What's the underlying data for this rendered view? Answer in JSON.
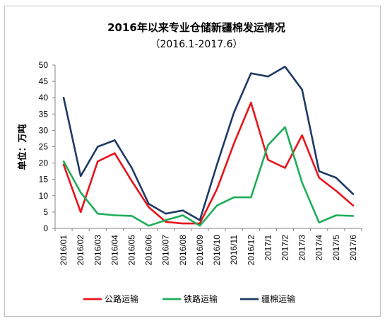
{
  "chart_data": {
    "type": "line",
    "title": "2016年以来专业仓储新疆棉发运情况",
    "subtitle": "（2016.1-2017.6）",
    "ylabel": "单位：万吨",
    "xlabel": "",
    "ylim": [
      0,
      50
    ],
    "yticks": [
      0,
      5,
      10,
      15,
      20,
      25,
      30,
      35,
      40,
      45,
      50
    ],
    "grid": false,
    "legend_position": "bottom",
    "categories": [
      "2016/01",
      "2016/02",
      "2016/03",
      "2016/04",
      "2016/05",
      "2016/06",
      "2016/07",
      "2016/08",
      "2016/09",
      "2016/10",
      "2016/11",
      "2016/12",
      "2017/1",
      "2017/2",
      "2017/3",
      "2017/4",
      "2017/5",
      "2017/6"
    ],
    "series": [
      {
        "name": "公路运输",
        "color": "#e8141b",
        "values": [
          19.5,
          5.0,
          20.5,
          23.0,
          14.5,
          6.5,
          2.0,
          1.5,
          1.5,
          12.0,
          26.0,
          38.5,
          21.0,
          18.5,
          28.5,
          15.5,
          11.5,
          7.0
        ]
      },
      {
        "name": "铁路运输",
        "color": "#1fad5a",
        "values": [
          20.5,
          11.0,
          4.5,
          4.0,
          3.8,
          0.8,
          2.5,
          4.0,
          0.8,
          7.0,
          9.5,
          9.5,
          25.5,
          31.0,
          14.0,
          1.8,
          4.0,
          3.8
        ]
      },
      {
        "name": "疆棉运输",
        "color": "#1f3a64",
        "values": [
          40.0,
          16.0,
          25.0,
          27.0,
          18.5,
          7.5,
          4.5,
          5.5,
          2.5,
          19.5,
          35.5,
          47.5,
          46.5,
          49.5,
          42.5,
          17.5,
          15.5,
          10.5
        ]
      }
    ]
  }
}
